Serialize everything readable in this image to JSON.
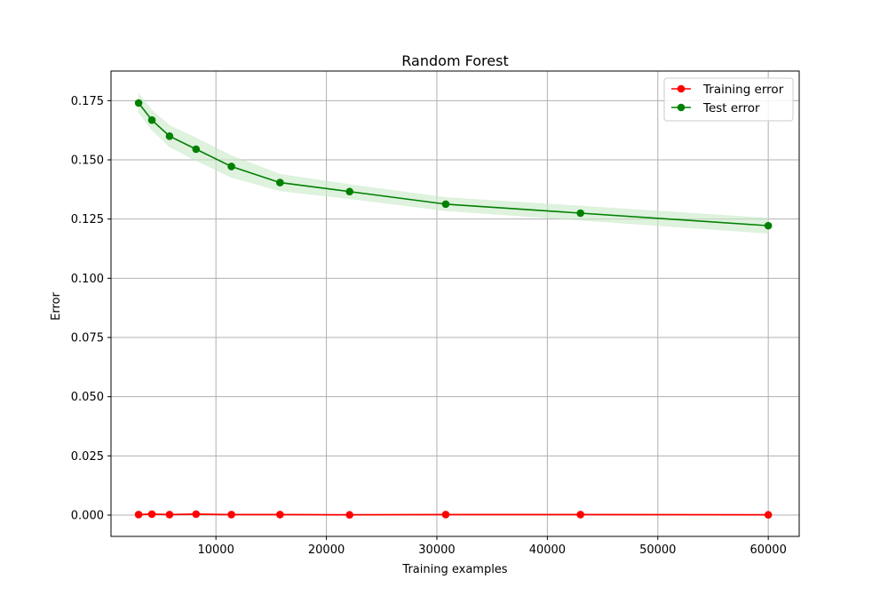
{
  "chart_data": {
    "type": "line",
    "title": "Random Forest",
    "xlabel": "Training examples",
    "ylabel": "Error",
    "xlim": [
      500,
      62800
    ],
    "ylim": [
      -0.009,
      0.1875
    ],
    "xticks": [
      10000,
      20000,
      30000,
      40000,
      50000,
      60000
    ],
    "yticks": [
      0.0,
      0.025,
      0.05,
      0.075,
      0.1,
      0.125,
      0.15,
      0.175
    ],
    "ytick_labels": [
      "0.000",
      "0.025",
      "0.050",
      "0.075",
      "0.100",
      "0.125",
      "0.150",
      "0.175"
    ],
    "grid": true,
    "legend_position": "top-right",
    "x": [
      3000,
      4200,
      5800,
      8200,
      11400,
      15800,
      22100,
      30800,
      43000,
      60000
    ],
    "series": [
      {
        "name": "Training error",
        "color": "#ff0000",
        "values": [
          0.0002,
          0.0004,
          0.0002,
          0.0004,
          0.0002,
          0.0002,
          0.0001,
          0.0002,
          0.0002,
          0.0001
        ],
        "band_width": [
          0.0002,
          0.0002,
          0.0002,
          0.0002,
          0.0002,
          0.0002,
          0.0002,
          0.0002,
          0.0002,
          0.0002
        ]
      },
      {
        "name": "Test error",
        "color": "#008000",
        "band_color": "#c8eac8",
        "values": [
          0.174,
          0.1668,
          0.16,
          0.1545,
          0.1472,
          0.1404,
          0.1366,
          0.1313,
          0.1275,
          0.1222
        ],
        "band_width": [
          0.004,
          0.0042,
          0.0045,
          0.0048,
          0.0046,
          0.0035,
          0.003,
          0.0028,
          0.003,
          0.0032
        ]
      }
    ]
  }
}
